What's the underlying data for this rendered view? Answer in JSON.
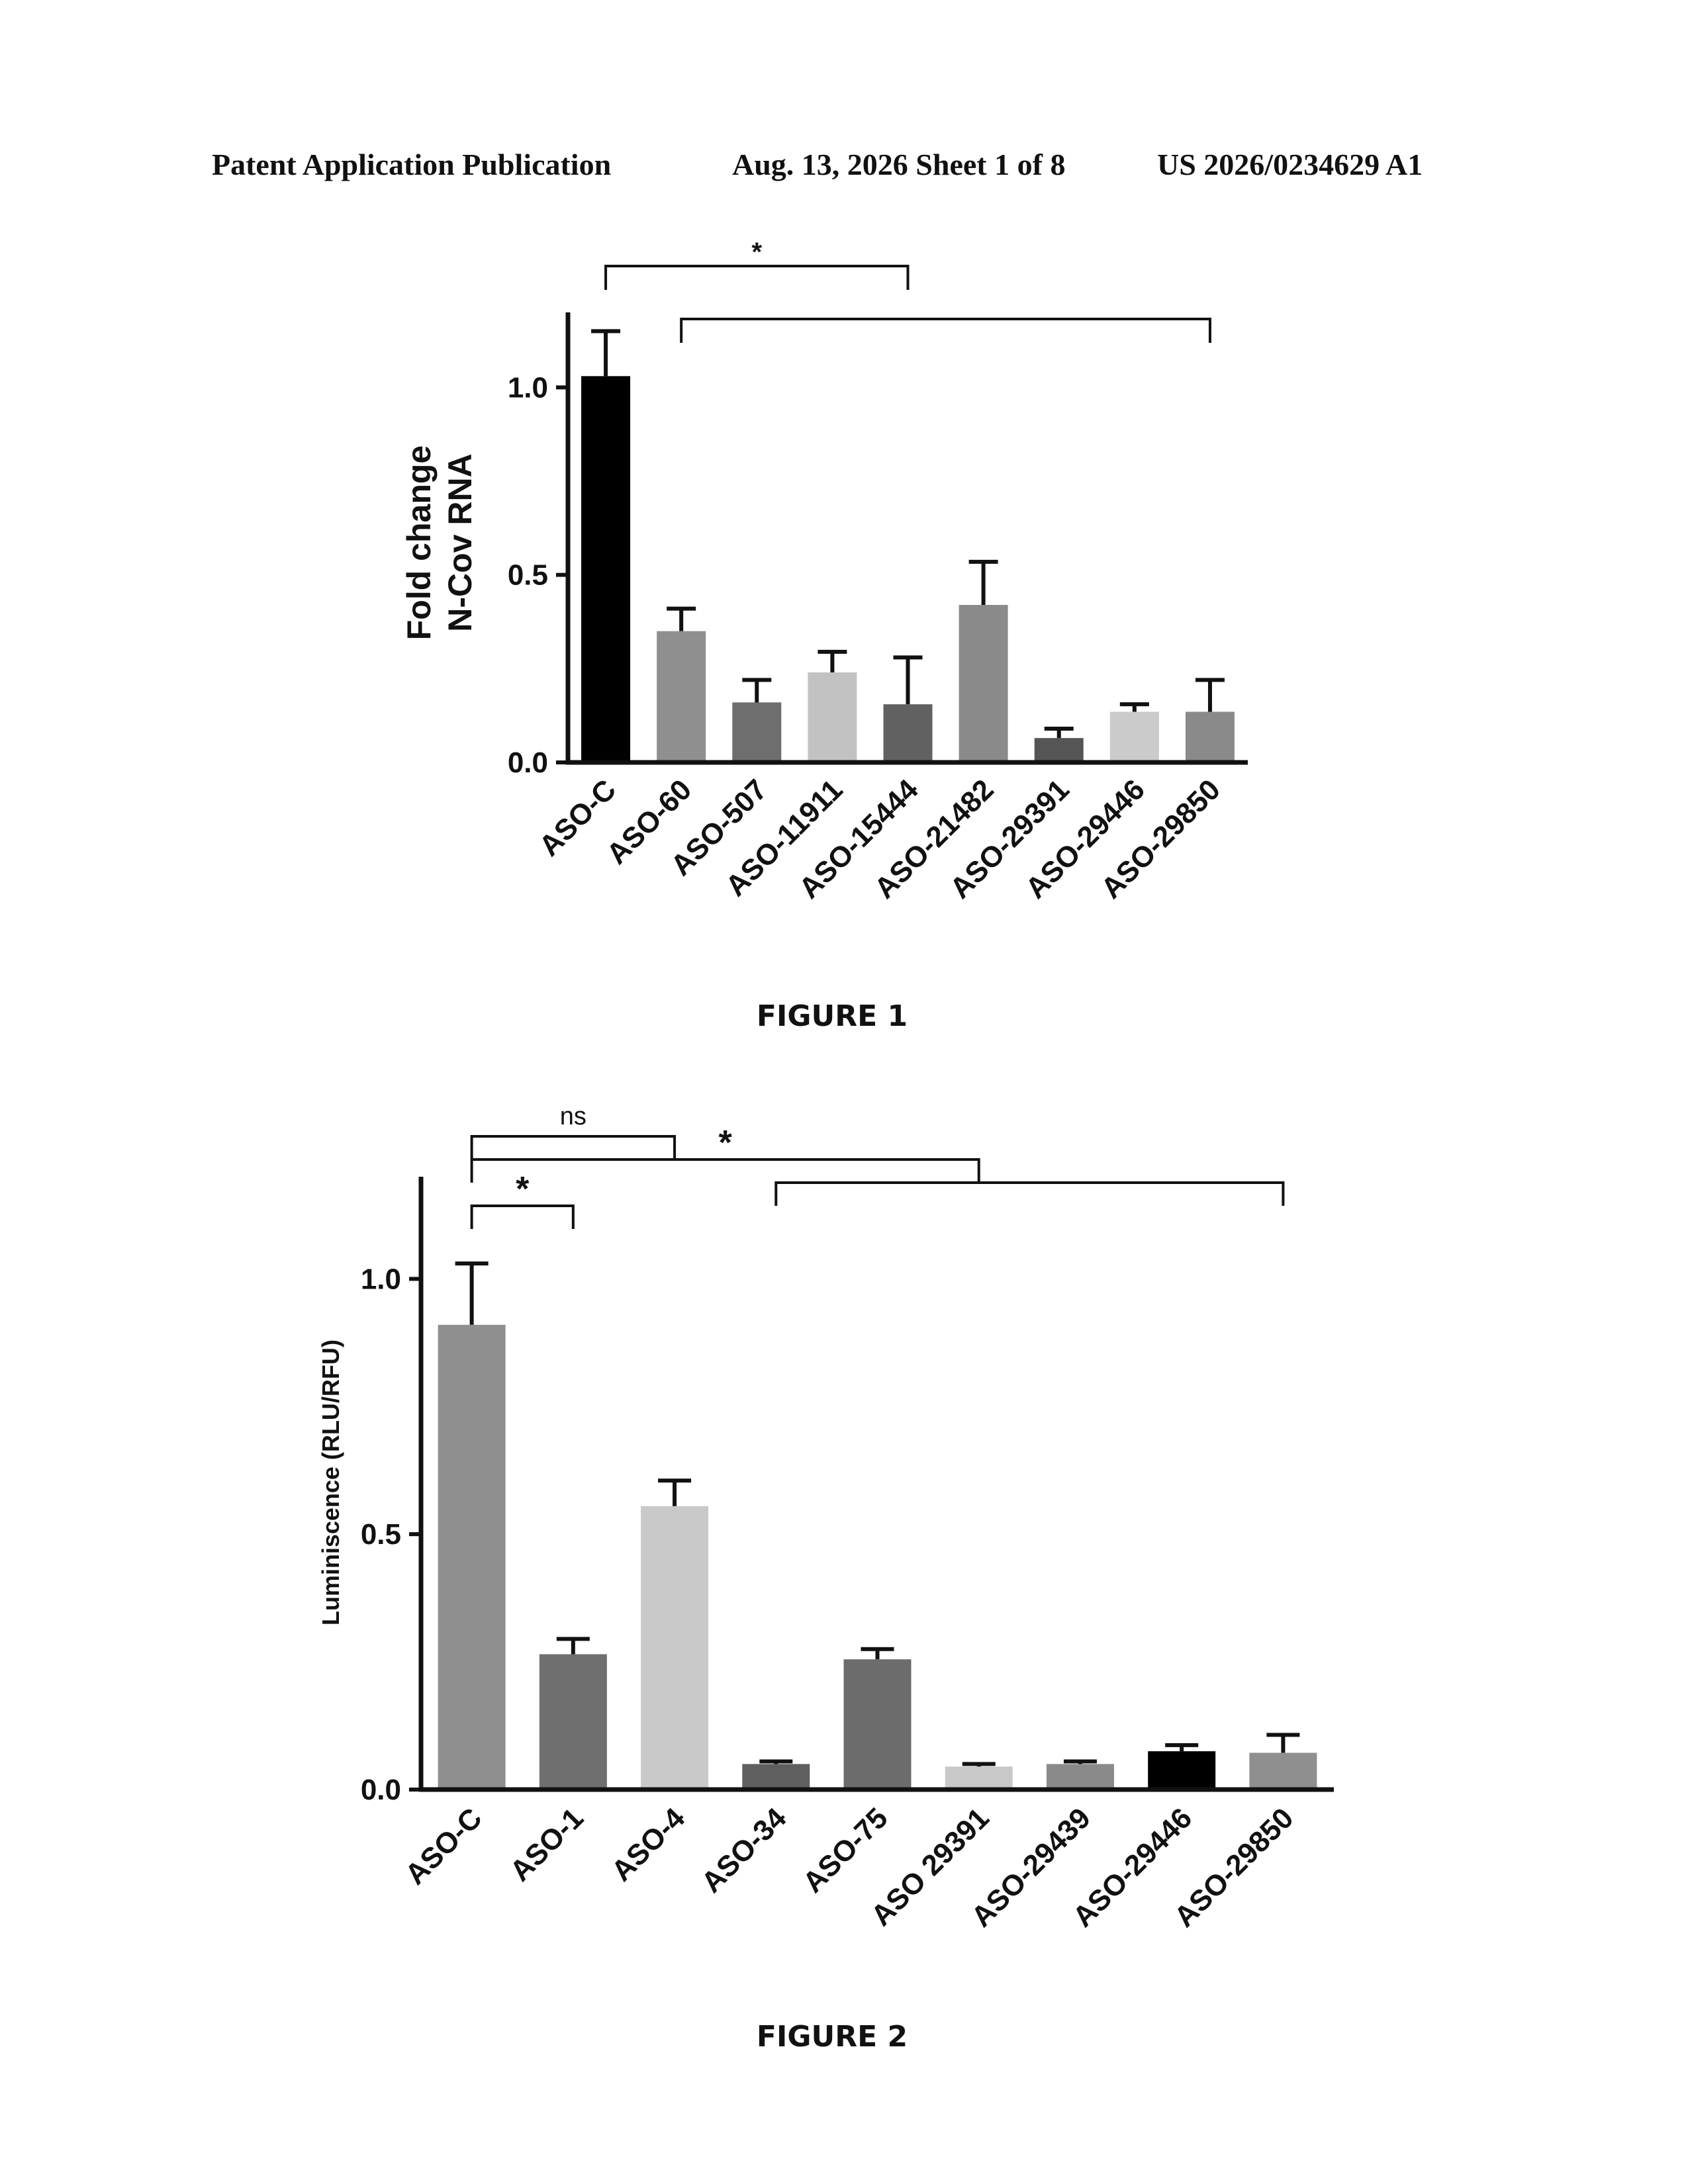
{
  "header": {
    "left": "Patent Application Publication",
    "middle": "Aug. 13, 2026  Sheet 1 of 8",
    "right": "US 2026/0234629 A1"
  },
  "figures": [
    {
      "caption": "FIGURE 1"
    },
    {
      "caption": "FIGURE 2"
    }
  ],
  "chart_data": [
    {
      "type": "bar",
      "ylabel": [
        "Fold change",
        "N-Cov RNA"
      ],
      "ylim": [
        0,
        1.2
      ],
      "yticks": [
        0.0,
        0.5,
        1.0
      ],
      "ytick_labels": [
        "0.0",
        "0.5",
        "1.0"
      ],
      "categories": [
        "ASO-C",
        "ASO-60",
        "ASO-507",
        "ASO-11911",
        "ASO-15444",
        "ASO-21482",
        "ASO-29391",
        "ASO-29446",
        "ASO-29850"
      ],
      "values": [
        1.03,
        0.35,
        0.16,
        0.24,
        0.155,
        0.42,
        0.065,
        0.135,
        0.135
      ],
      "errors": [
        0.12,
        0.06,
        0.06,
        0.055,
        0.125,
        0.115,
        0.025,
        0.02,
        0.085
      ],
      "colors": [
        "#000000",
        "#8f8f8f",
        "#6e6e6e",
        "#c2c2c2",
        "#616161",
        "#8a8a8a",
        "#555555",
        "#cbcbcb",
        "#8a8a8a"
      ],
      "annotations": [
        {
          "text": "*",
          "from": 0,
          "to": 4,
          "level": 2
        },
        {
          "text": "",
          "from": 1,
          "to": 8,
          "level": 1
        }
      ]
    },
    {
      "type": "bar",
      "ylabel": [
        "Luminiscence (RLU/RFU)"
      ],
      "ylim": [
        0,
        1.2
      ],
      "yticks": [
        0.0,
        0.5,
        1.0
      ],
      "ytick_labels": [
        "0.0",
        "0.5",
        "1.0"
      ],
      "categories": [
        "ASO-C",
        "ASO-1",
        "ASO-4",
        "ASO-34",
        "ASO-75",
        "ASO 29391",
        "ASO-29439",
        "ASO-29446",
        "ASO-29850"
      ],
      "values": [
        0.91,
        0.265,
        0.555,
        0.05,
        0.255,
        0.045,
        0.05,
        0.075,
        0.072
      ],
      "errors": [
        0.12,
        0.03,
        0.05,
        0.005,
        0.02,
        0.005,
        0.005,
        0.012,
        0.035
      ],
      "colors": [
        "#8f8f8f",
        "#6f6f6f",
        "#c9c9c9",
        "#5f5f5f",
        "#6c6c6c",
        "#c8c8c8",
        "#8a8a8a",
        "#000000",
        "#8f8f8f"
      ],
      "annotations": [
        {
          "text": "ns",
          "from": 0,
          "to": 2,
          "level": 4
        },
        {
          "text": "*",
          "from": 0,
          "to": 5,
          "level": 3
        },
        {
          "text": "",
          "from": 3,
          "to": 8,
          "level": 2
        },
        {
          "text": "*",
          "from": 0,
          "to": 1,
          "level": 1
        }
      ]
    }
  ]
}
